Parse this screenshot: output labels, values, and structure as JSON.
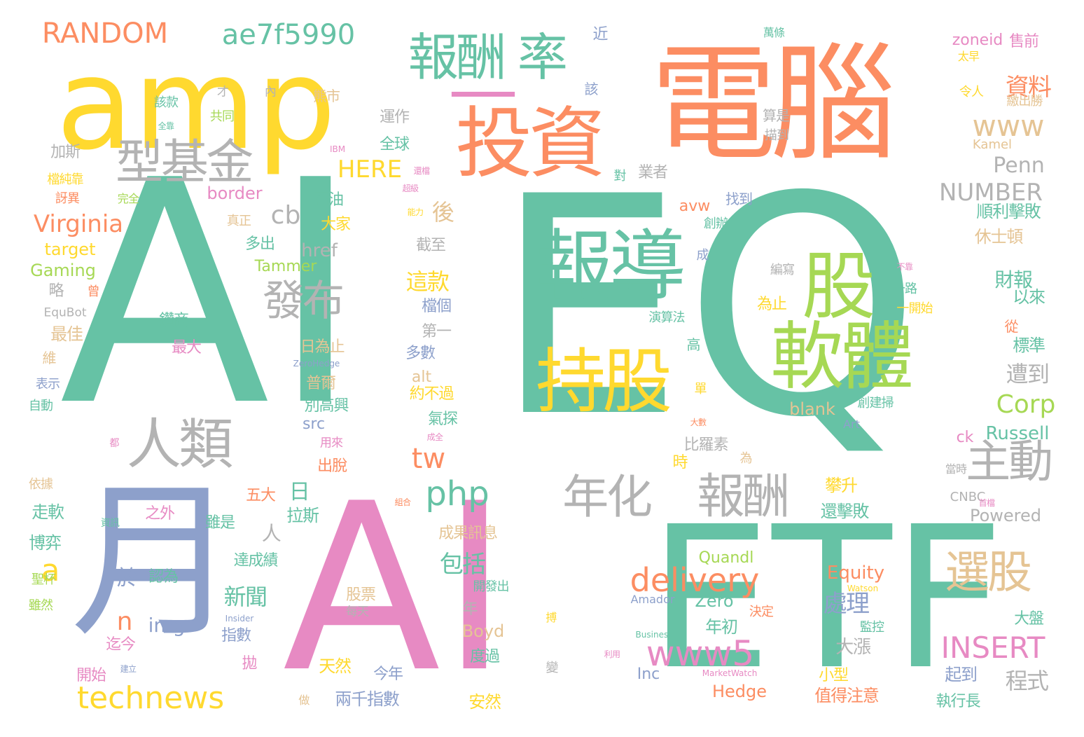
{
  "palette": {
    "teal": "#66c2a5",
    "orange": "#fc8d62",
    "blue": "#8da0cb",
    "pink": "#e78ac3",
    "green": "#a6d854",
    "yellow": "#ffd92f",
    "tan": "#e5c494",
    "gray": "#b3b3b3"
  },
  "words": [
    {
      "text": "AI",
      "color": "teal"
    },
    {
      "text": "EQ",
      "color": "teal"
    },
    {
      "text": "電腦",
      "color": "orange"
    },
    {
      "text": "AI",
      "color": "pink"
    },
    {
      "text": "ETF",
      "color": "teal"
    },
    {
      "text": "月",
      "color": "blue"
    },
    {
      "text": "amp",
      "color": "yellow"
    },
    {
      "text": "—",
      "color": "pink"
    },
    {
      "text": "投資",
      "color": "orange"
    },
    {
      "text": "報導",
      "color": "teal"
    },
    {
      "text": "股",
      "color": "green"
    },
    {
      "text": "軟體",
      "color": "green"
    },
    {
      "text": "持股",
      "color": "yellow"
    },
    {
      "text": "型基金",
      "color": "gray"
    },
    {
      "text": "人類",
      "color": "gray"
    },
    {
      "text": "報酬 率",
      "color": "teal"
    },
    {
      "text": "發布",
      "color": "gray"
    },
    {
      "text": "年化",
      "color": "gray"
    },
    {
      "text": "報酬",
      "color": "gray"
    },
    {
      "text": "主動",
      "color": "gray"
    },
    {
      "text": "選股",
      "color": "tan"
    },
    {
      "text": "RANDOM",
      "color": "orange"
    },
    {
      "text": "ae7f5990",
      "color": "teal"
    },
    {
      "text": "delivery",
      "color": "orange"
    },
    {
      "text": "www5",
      "color": "pink"
    },
    {
      "text": "technews",
      "color": "yellow"
    },
    {
      "text": "php",
      "color": "teal"
    },
    {
      "text": "INSERT",
      "color": "pink"
    },
    {
      "text": "Virginia",
      "color": "orange"
    },
    {
      "text": "www",
      "color": "tan"
    },
    {
      "text": "NUMBER",
      "color": "gray"
    },
    {
      "text": "Corp",
      "color": "green"
    },
    {
      "text": "Penn",
      "color": "gray"
    },
    {
      "text": "HERE",
      "color": "yellow"
    },
    {
      "text": "cb",
      "color": "gray"
    },
    {
      "text": "tw",
      "color": "orange"
    },
    {
      "text": "a",
      "color": "yellow"
    },
    {
      "text": "n",
      "color": "orange"
    },
    {
      "text": "資料",
      "color": "orange"
    },
    {
      "text": "處理",
      "color": "blue"
    },
    {
      "text": "包括",
      "color": "teal"
    },
    {
      "text": "新聞",
      "color": "teal"
    },
    {
      "text": "遭到",
      "color": "gray"
    },
    {
      "text": "程式",
      "color": "gray"
    },
    {
      "text": "財報",
      "color": "teal"
    },
    {
      "text": "日",
      "color": "teal"
    },
    {
      "text": "於",
      "color": "blue"
    },
    {
      "text": "人",
      "color": "gray"
    },
    {
      "text": "後",
      "color": "tan"
    },
    {
      "text": "這款",
      "color": "yellow"
    },
    {
      "text": "順利擊敗",
      "color": "teal"
    },
    {
      "text": "休士頓",
      "color": "tan"
    },
    {
      "text": "Russell",
      "color": "teal"
    },
    {
      "text": "Equity",
      "color": "orange"
    },
    {
      "text": "Zero",
      "color": "teal"
    },
    {
      "text": "Quandl",
      "color": "green"
    },
    {
      "text": "Hedge",
      "color": "orange"
    },
    {
      "text": "Boyd",
      "color": "tan"
    },
    {
      "text": "Amador",
      "color": "blue"
    },
    {
      "text": "Inc",
      "color": "blue"
    },
    {
      "text": "img",
      "color": "blue"
    },
    {
      "text": "href",
      "color": "gray"
    },
    {
      "text": "border",
      "color": "pink"
    },
    {
      "text": "target",
      "color": "yellow"
    },
    {
      "text": "Gaming",
      "color": "green"
    },
    {
      "text": "Tammer",
      "color": "green"
    },
    {
      "text": "blank",
      "color": "tan"
    },
    {
      "text": "Powered",
      "color": "gray"
    },
    {
      "text": "CNBC",
      "color": "gray"
    },
    {
      "text": "Art",
      "color": "blue"
    },
    {
      "text": "src",
      "color": "blue"
    },
    {
      "text": "alt",
      "color": "tan"
    },
    {
      "text": "avw",
      "color": "orange"
    },
    {
      "text": "ck",
      "color": "pink"
    },
    {
      "text": "Kamel",
      "color": "tan"
    },
    {
      "text": "zoneid",
      "color": "pink"
    },
    {
      "text": "售前",
      "color": "pink"
    },
    {
      "text": "EquBot",
      "color": "gray"
    },
    {
      "text": "IBM",
      "color": "pink"
    },
    {
      "text": "ZeroHedge",
      "color": "blue"
    },
    {
      "text": "Watson",
      "color": "yellow"
    },
    {
      "text": "Insider",
      "color": "blue"
    },
    {
      "text": "Business",
      "color": "teal"
    },
    {
      "text": "MarketWatch",
      "color": "pink"
    },
    {
      "text": "近",
      "color": "blue"
    },
    {
      "text": "該",
      "color": "blue"
    },
    {
      "text": "萬條",
      "color": "teal"
    },
    {
      "text": "太早",
      "color": "yellow"
    },
    {
      "text": "令人",
      "color": "yellow"
    },
    {
      "text": "繳出勝",
      "color": "tan"
    },
    {
      "text": "運作",
      "color": "gray"
    },
    {
      "text": "全球",
      "color": "teal"
    },
    {
      "text": "熊市",
      "color": "tan"
    },
    {
      "text": "才",
      "color": "gray"
    },
    {
      "text": "內",
      "color": "gray"
    },
    {
      "text": "該款",
      "color": "teal"
    },
    {
      "text": "共同",
      "color": "green"
    },
    {
      "text": "全靠",
      "color": "teal"
    },
    {
      "text": "加斯",
      "color": "gray"
    },
    {
      "text": "檔純靠",
      "color": "yellow"
    },
    {
      "text": "訝異",
      "color": "orange"
    },
    {
      "text": "完全",
      "color": "green"
    },
    {
      "text": "還檔",
      "color": "pink"
    },
    {
      "text": "超級",
      "color": "pink"
    },
    {
      "text": "能力",
      "color": "yellow"
    },
    {
      "text": "真正",
      "color": "tan"
    },
    {
      "text": "石油",
      "color": "teal"
    },
    {
      "text": "大家",
      "color": "yellow"
    },
    {
      "text": "多出",
      "color": "teal"
    },
    {
      "text": "截至",
      "color": "gray"
    },
    {
      "text": "略",
      "color": "gray"
    },
    {
      "text": "曾",
      "color": "orange"
    },
    {
      "text": "鑽商",
      "color": "teal"
    },
    {
      "text": "最佳",
      "color": "tan"
    },
    {
      "text": "最大",
      "color": "pink"
    },
    {
      "text": "維",
      "color": "tan"
    },
    {
      "text": "表示",
      "color": "blue"
    },
    {
      "text": "自動",
      "color": "teal"
    },
    {
      "text": "算是",
      "color": "gray"
    },
    {
      "text": "描到",
      "color": "gray"
    },
    {
      "text": "業者",
      "color": "gray"
    },
    {
      "text": "對",
      "color": "teal"
    },
    {
      "text": "找到",
      "color": "blue"
    },
    {
      "text": "創辦",
      "color": "teal"
    },
    {
      "text": "成",
      "color": "blue"
    },
    {
      "text": "編寫",
      "color": "gray"
    },
    {
      "text": "不靠",
      "color": "pink"
    },
    {
      "text": "一路",
      "color": "teal"
    },
    {
      "text": "為止",
      "color": "yellow"
    },
    {
      "text": "一開始",
      "color": "yellow"
    },
    {
      "text": "以來",
      "color": "teal"
    },
    {
      "text": "從",
      "color": "orange"
    },
    {
      "text": "標準",
      "color": "teal"
    },
    {
      "text": "演算法",
      "color": "teal"
    },
    {
      "text": "高",
      "color": "teal"
    },
    {
      "text": "檔個",
      "color": "blue"
    },
    {
      "text": "第一",
      "color": "gray"
    },
    {
      "text": "多數",
      "color": "blue"
    },
    {
      "text": "日為止",
      "color": "tan"
    },
    {
      "text": "普爾",
      "color": "tan"
    },
    {
      "text": "約不過",
      "color": "yellow"
    },
    {
      "text": "別高興",
      "color": "teal"
    },
    {
      "text": "氣探",
      "color": "teal"
    },
    {
      "text": "成全",
      "color": "pink"
    },
    {
      "text": "創建掃",
      "color": "teal"
    },
    {
      "text": "大數",
      "color": "orange"
    },
    {
      "text": "單",
      "color": "yellow"
    },
    {
      "text": "都",
      "color": "pink"
    },
    {
      "text": "用來",
      "color": "pink"
    },
    {
      "text": "出脫",
      "color": "orange"
    },
    {
      "text": "比羅素",
      "color": "gray"
    },
    {
      "text": "時",
      "color": "yellow"
    },
    {
      "text": "為",
      "color": "tan"
    },
    {
      "text": "攀升",
      "color": "yellow"
    },
    {
      "text": "還擊敗",
      "color": "teal"
    },
    {
      "text": "依據",
      "color": "tan"
    },
    {
      "text": "組合",
      "color": "orange"
    },
    {
      "text": "五大",
      "color": "orange"
    },
    {
      "text": "拉斯",
      "color": "teal"
    },
    {
      "text": "雖是",
      "color": "teal"
    },
    {
      "text": "之外",
      "color": "pink"
    },
    {
      "text": "走軟",
      "color": "teal"
    },
    {
      "text": "資訊",
      "color": "teal"
    },
    {
      "text": "博弈",
      "color": "teal"
    },
    {
      "text": "達成績",
      "color": "teal"
    },
    {
      "text": "認為",
      "color": "teal"
    },
    {
      "text": "聖杯",
      "color": "green"
    },
    {
      "text": "雖然",
      "color": "green"
    },
    {
      "text": "股票",
      "color": "tan"
    },
    {
      "text": "每天",
      "color": "gray"
    },
    {
      "text": "開發出",
      "color": "teal"
    },
    {
      "text": "成果訊息",
      "color": "tan"
    },
    {
      "text": "年",
      "color": "gray"
    },
    {
      "text": "決定",
      "color": "orange"
    },
    {
      "text": "年初",
      "color": "teal"
    },
    {
      "text": "監控",
      "color": "teal"
    },
    {
      "text": "大盤",
      "color": "teal"
    },
    {
      "text": "大漲",
      "color": "gray"
    },
    {
      "text": "起到",
      "color": "blue"
    },
    {
      "text": "值得注意",
      "color": "orange"
    },
    {
      "text": "小型",
      "color": "yellow"
    },
    {
      "text": "執行長",
      "color": "teal"
    },
    {
      "text": "當時",
      "color": "gray"
    },
    {
      "text": "首檔",
      "color": "pink"
    },
    {
      "text": "指數",
      "color": "blue"
    },
    {
      "text": "迄今",
      "color": "pink"
    },
    {
      "text": "開始",
      "color": "pink"
    },
    {
      "text": "建立",
      "color": "blue"
    },
    {
      "text": "拋",
      "color": "pink"
    },
    {
      "text": "天然",
      "color": "yellow"
    },
    {
      "text": "今年",
      "color": "blue"
    },
    {
      "text": "兩千指數",
      "color": "blue"
    },
    {
      "text": "做",
      "color": "tan"
    },
    {
      "text": "安然",
      "color": "yellow"
    },
    {
      "text": "度過",
      "color": "teal"
    },
    {
      "text": "搏",
      "color": "yellow"
    },
    {
      "text": "利用",
      "color": "pink"
    },
    {
      "text": "變",
      "color": "gray"
    }
  ]
}
